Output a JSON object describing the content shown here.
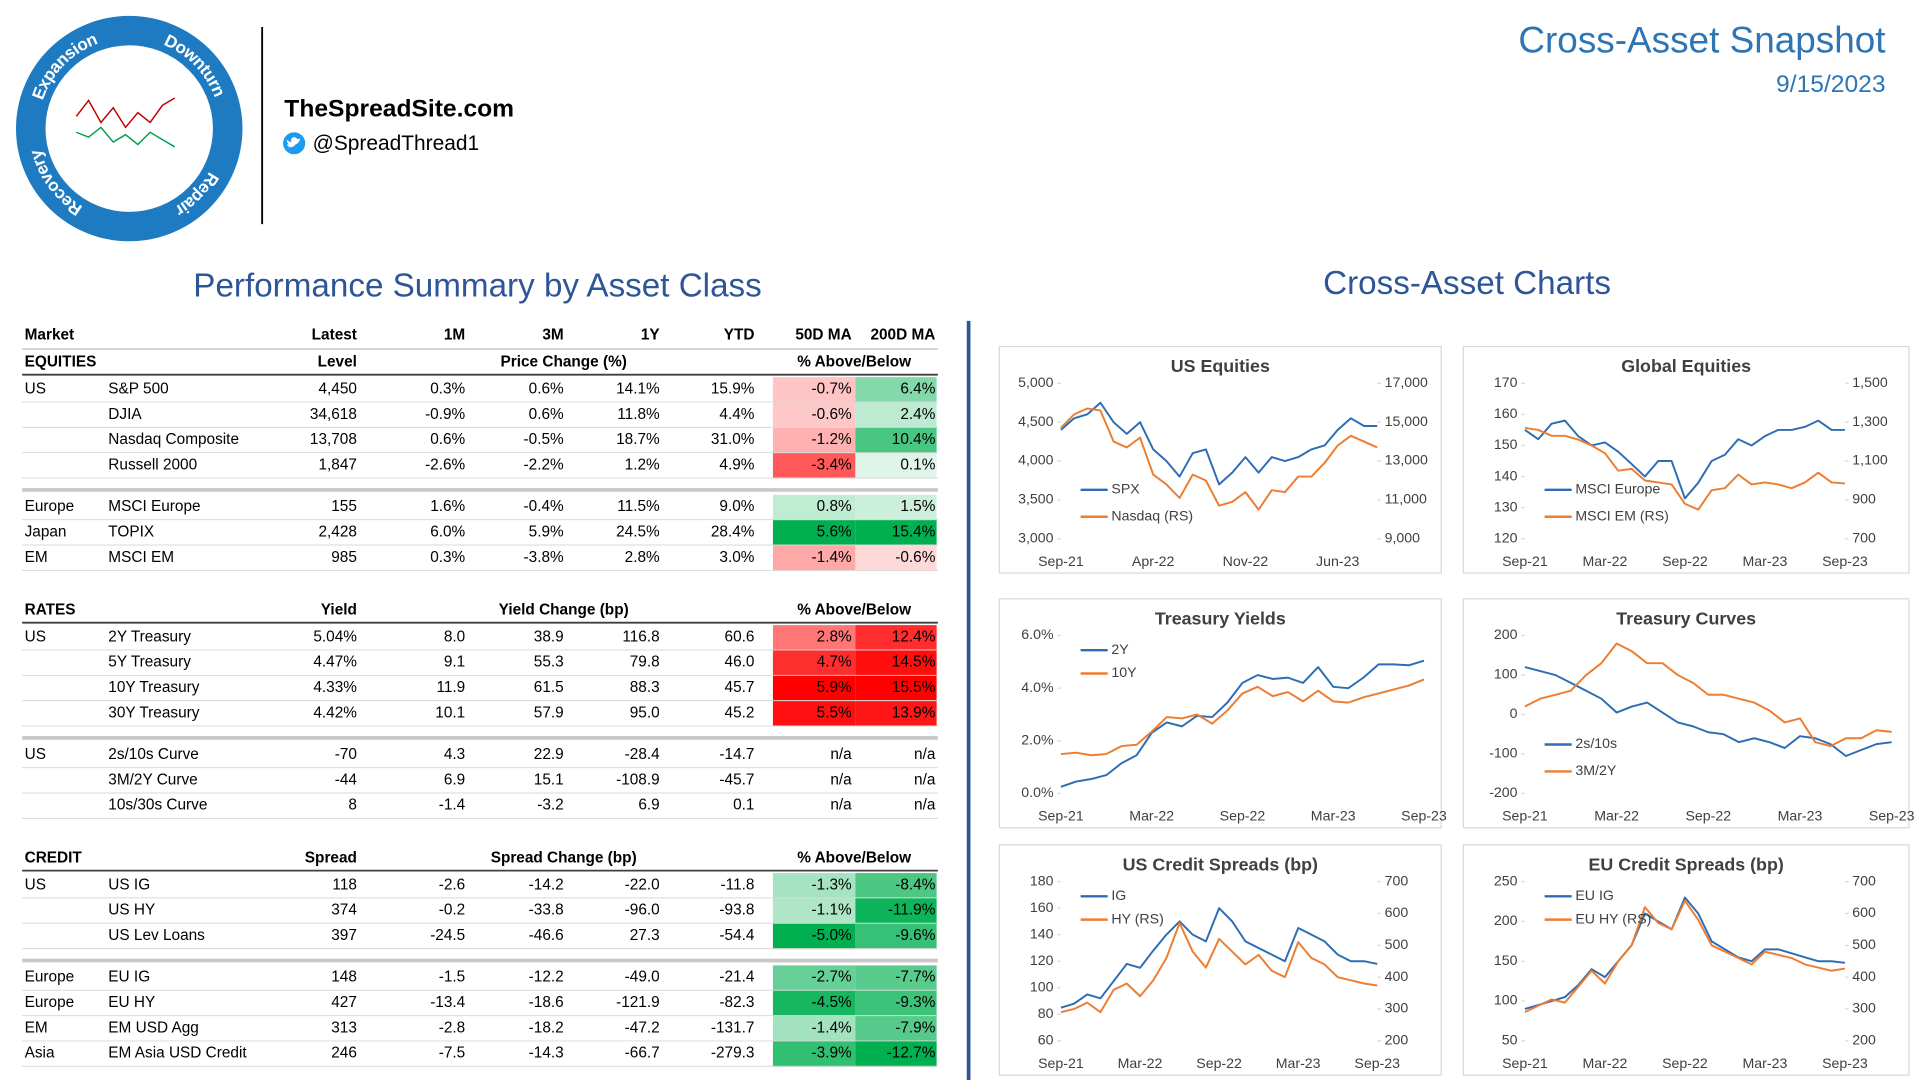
{
  "header": {
    "logo_words": [
      "Expansion",
      "Downturn",
      "Repair",
      "Recovery"
    ],
    "site": "TheSpreadSite.com",
    "handle": "@SpreadThread1",
    "title": "Cross-Asset Snapshot",
    "date": "9/15/2023"
  },
  "sections": {
    "left": "Performance Summary by Asset Class",
    "right": "Cross-Asset Charts"
  },
  "table": {
    "columns": [
      "Market",
      "Latest",
      "1M",
      "3M",
      "1Y",
      "YTD",
      "50D MA",
      "200D MA"
    ],
    "sections": [
      {
        "header": [
          "EQUITIES",
          "Level",
          "Price Change (%)",
          "% Above/Below"
        ],
        "groups": [
          [
            [
              "US",
              "S&P 500",
              "4,450",
              "0.3%",
              "0.6%",
              "14.1%",
              "15.9%",
              "-0.7%",
              "6.4%"
            ],
            [
              null,
              "DJIA",
              "34,618",
              "-0.9%",
              "0.6%",
              "11.8%",
              "4.4%",
              "-0.6%",
              "2.4%"
            ],
            [
              null,
              "Nasdaq Composite",
              "13,708",
              "0.6%",
              "-0.5%",
              "18.7%",
              "31.0%",
              "-1.2%",
              "10.4%"
            ],
            [
              null,
              "Russell 2000",
              "1,847",
              "-2.6%",
              "-2.2%",
              "1.2%",
              "4.9%",
              "-3.4%",
              "0.1%"
            ]
          ],
          [
            [
              "Europe",
              "MSCI Europe",
              "155",
              "1.6%",
              "-0.4%",
              "11.5%",
              "9.0%",
              "0.8%",
              "1.5%"
            ],
            [
              "Japan",
              "TOPIX",
              "2,428",
              "6.0%",
              "5.9%",
              "24.5%",
              "28.4%",
              "5.6%",
              "15.4%"
            ],
            [
              "EM",
              "MSCI EM",
              "985",
              "0.3%",
              "-3.8%",
              "2.8%",
              "3.0%",
              "-1.4%",
              "-0.6%"
            ]
          ]
        ]
      },
      {
        "header": [
          "RATES",
          "Yield",
          "Yield Change (bp)",
          "% Above/Below"
        ],
        "groups": [
          [
            [
              "US",
              "2Y Treasury",
              "5.04%",
              "8.0",
              "38.9",
              "116.8",
              "60.6",
              "2.8%",
              "12.4%"
            ],
            [
              null,
              "5Y Treasury",
              "4.47%",
              "9.1",
              "55.3",
              "79.8",
              "46.0",
              "4.7%",
              "14.5%"
            ],
            [
              null,
              "10Y Treasury",
              "4.33%",
              "11.9",
              "61.5",
              "88.3",
              "45.7",
              "5.9%",
              "15.5%"
            ],
            [
              null,
              "30Y Treasury",
              "4.42%",
              "10.1",
              "57.9",
              "95.0",
              "45.2",
              "5.5%",
              "13.9%"
            ]
          ],
          [
            [
              "US",
              "2s/10s Curve",
              "-70",
              "4.3",
              "22.9",
              "-28.4",
              "-14.7",
              "n/a",
              "n/a"
            ],
            [
              null,
              "3M/2Y Curve",
              "-44",
              "6.9",
              "15.1",
              "-108.9",
              "-45.7",
              "n/a",
              "n/a"
            ],
            [
              null,
              "10s/30s Curve",
              "8",
              "-1.4",
              "-3.2",
              "6.9",
              "0.1",
              "n/a",
              "n/a"
            ]
          ]
        ]
      },
      {
        "header": [
          "CREDIT",
          "Spread",
          "Spread Change (bp)",
          "% Above/Below"
        ],
        "groups": [
          [
            [
              "US",
              "US IG",
              "118",
              "-2.6",
              "-14.2",
              "-22.0",
              "-11.8",
              "-1.3%",
              "-8.4%"
            ],
            [
              null,
              "US HY",
              "374",
              "-0.2",
              "-33.8",
              "-96.0",
              "-93.8",
              "-1.1%",
              "-11.9%"
            ],
            [
              null,
              "US Lev Loans",
              "397",
              "-24.5",
              "-46.6",
              "27.3",
              "-54.4",
              "-5.0%",
              "-9.6%"
            ]
          ],
          [
            [
              "Europe",
              "EU IG",
              "148",
              "-1.5",
              "-12.2",
              "-49.0",
              "-21.4",
              "-2.7%",
              "-7.7%"
            ],
            [
              "Europe",
              "EU HY",
              "427",
              "-13.4",
              "-18.6",
              "-121.9",
              "-82.3",
              "-4.5%",
              "-9.3%"
            ],
            [
              "EM",
              "EM USD Agg",
              "313",
              "-2.8",
              "-18.2",
              "-47.2",
              "-131.7",
              "-1.4%",
              "-7.9%"
            ],
            [
              "Asia",
              "EM Asia USD Credit",
              "246",
              "-7.5",
              "-14.3",
              "-66.7",
              "-279.3",
              "-3.9%",
              "-12.7%"
            ]
          ]
        ]
      }
    ]
  },
  "chart_data": [
    {
      "type": "line",
      "title": "US Equities",
      "legend": "lower left",
      "x": [
        "Sep-21",
        "Oct-21",
        "Nov-21",
        "Dec-21",
        "Jan-22",
        "Feb-22",
        "Mar-22",
        "Apr-22",
        "May-22",
        "Jun-22",
        "Jul-22",
        "Aug-22",
        "Sep-22",
        "Oct-22",
        "Nov-22",
        "Dec-22",
        "Jan-23",
        "Feb-23",
        "Mar-23",
        "Apr-23",
        "May-23",
        "Jun-23",
        "Jul-23",
        "Aug-23",
        "Sep-23"
      ],
      "xticks": [
        "Sep-21",
        "Apr-22",
        "Nov-22",
        "Jun-23"
      ],
      "ylim": [
        3000,
        5000
      ],
      "yticks": [
        {
          "value": 3000,
          "label": "3,000"
        },
        {
          "value": 3500,
          "label": "3,500"
        },
        {
          "value": 4000,
          "label": "4,000"
        },
        {
          "value": 4500,
          "label": "4,500"
        },
        {
          "value": 5000,
          "label": "5,000"
        }
      ],
      "y2lim": [
        9000,
        17000
      ],
      "y2ticks": [
        {
          "value": 9000,
          "label": "9,000"
        },
        {
          "value": 11000,
          "label": "11,000"
        },
        {
          "value": 13000,
          "label": "13,000"
        },
        {
          "value": 15000,
          "label": "15,000"
        },
        {
          "value": 17000,
          "label": "17,000"
        }
      ],
      "series": [
        {
          "name": "SPX",
          "color": "#2e6db4",
          "values": [
            4400,
            4550,
            4600,
            4750,
            4500,
            4350,
            4500,
            4150,
            4000,
            3800,
            4100,
            4150,
            3700,
            3850,
            4050,
            3850,
            4050,
            4000,
            4050,
            4150,
            4200,
            4400,
            4550,
            4450,
            4450
          ]
        },
        {
          "name": "Nasdaq (RS)",
          "color": "#ed7d31",
          "axis": "y2",
          "values": [
            14700,
            15400,
            15700,
            15600,
            14000,
            13700,
            14200,
            12300,
            11800,
            11100,
            12300,
            12000,
            10700,
            10900,
            11400,
            10500,
            11500,
            11400,
            12200,
            12200,
            12900,
            13800,
            14300,
            14000,
            13700
          ]
        }
      ]
    },
    {
      "type": "line",
      "title": "Global Equities",
      "legend": "lower left",
      "x": [
        "Sep-21",
        "Oct-21",
        "Nov-21",
        "Dec-21",
        "Jan-22",
        "Feb-22",
        "Mar-22",
        "Apr-22",
        "May-22",
        "Jun-22",
        "Jul-22",
        "Aug-22",
        "Sep-22",
        "Oct-22",
        "Nov-22",
        "Dec-22",
        "Jan-23",
        "Feb-23",
        "Mar-23",
        "Apr-23",
        "May-23",
        "Jun-23",
        "Jul-23",
        "Aug-23",
        "Sep-23"
      ],
      "xticks": [
        "Sep-21",
        "Mar-22",
        "Sep-22",
        "Mar-23",
        "Sep-23"
      ],
      "ylim": [
        120,
        170
      ],
      "yticks": [
        120,
        130,
        140,
        150,
        160,
        170
      ],
      "y2lim": [
        700,
        1500
      ],
      "y2ticks": [
        700,
        900,
        {
          "value": 1100,
          "label": "1,100"
        },
        {
          "value": 1300,
          "label": "1,300"
        },
        {
          "value": 1500,
          "label": "1,500"
        }
      ],
      "series": [
        {
          "name": "MSCI Europe",
          "color": "#2e6db4",
          "values": [
            155,
            152,
            157,
            158,
            153,
            150,
            151,
            148,
            144,
            140,
            145,
            145,
            133,
            138,
            145,
            147,
            152,
            150,
            153,
            155,
            155,
            156,
            158,
            155,
            155
          ]
        },
        {
          "name": "MSCI EM (RS)",
          "color": "#ed7d31",
          "axis": "y2",
          "values": [
            1270,
            1260,
            1230,
            1230,
            1210,
            1180,
            1140,
            1050,
            1060,
            1000,
            990,
            980,
            880,
            850,
            950,
            960,
            1030,
            980,
            990,
            980,
            960,
            990,
            1040,
            990,
            985
          ]
        }
      ]
    },
    {
      "type": "line",
      "title": "Treasury Yields",
      "legend": "upper left",
      "x": [
        "Sep-21",
        "Oct-21",
        "Nov-21",
        "Dec-21",
        "Jan-22",
        "Feb-22",
        "Mar-22",
        "Apr-22",
        "May-22",
        "Jun-22",
        "Jul-22",
        "Aug-22",
        "Sep-22",
        "Oct-22",
        "Nov-22",
        "Dec-22",
        "Jan-23",
        "Feb-23",
        "Mar-23",
        "Apr-23",
        "May-23",
        "Jun-23",
        "Jul-23",
        "Aug-23",
        "Sep-23"
      ],
      "xticks": [
        "Sep-21",
        "Mar-22",
        "Sep-22",
        "Mar-23",
        "Sep-23"
      ],
      "ylim": [
        0,
        6
      ],
      "yticks": [
        {
          "value": 0,
          "label": "0.0%"
        },
        {
          "value": 2,
          "label": "2.0%"
        },
        {
          "value": 4,
          "label": "4.0%"
        },
        {
          "value": 6,
          "label": "6.0%"
        }
      ],
      "series": [
        {
          "name": "2Y",
          "color": "#2e6db4",
          "values": [
            0.25,
            0.45,
            0.55,
            0.7,
            1.15,
            1.45,
            2.3,
            2.7,
            2.55,
            2.95,
            2.9,
            3.45,
            4.2,
            4.5,
            4.35,
            4.4,
            4.2,
            4.8,
            4.05,
            4.0,
            4.4,
            4.9,
            4.9,
            4.87,
            5.04
          ]
        },
        {
          "name": "10Y",
          "color": "#ed7d31",
          "values": [
            1.5,
            1.55,
            1.45,
            1.5,
            1.8,
            1.85,
            2.35,
            2.9,
            2.85,
            3.0,
            2.65,
            3.15,
            3.8,
            4.05,
            3.7,
            3.85,
            3.5,
            3.9,
            3.5,
            3.45,
            3.65,
            3.8,
            3.95,
            4.1,
            4.33
          ]
        }
      ]
    },
    {
      "type": "line",
      "title": "Treasury Curves",
      "legend": "lower left",
      "x": [
        "Sep-21",
        "Oct-21",
        "Nov-21",
        "Dec-21",
        "Jan-22",
        "Feb-22",
        "Mar-22",
        "Apr-22",
        "May-22",
        "Jun-22",
        "Jul-22",
        "Aug-22",
        "Sep-22",
        "Oct-22",
        "Nov-22",
        "Dec-22",
        "Jan-23",
        "Feb-23",
        "Mar-23",
        "Apr-23",
        "May-23",
        "Jun-23",
        "Jul-23",
        "Aug-23",
        "Sep-23"
      ],
      "xticks": [
        "Sep-21",
        "Mar-22",
        "Sep-22",
        "Mar-23",
        "Sep-23"
      ],
      "ylim": [
        -200,
        200
      ],
      "yticks": [
        -200,
        -100,
        0,
        100,
        200
      ],
      "series": [
        {
          "name": "2s/10s",
          "color": "#2e6db4",
          "values": [
            120,
            110,
            100,
            80,
            60,
            40,
            5,
            20,
            30,
            5,
            -20,
            -30,
            -45,
            -50,
            -70,
            -60,
            -70,
            -85,
            -55,
            -60,
            -75,
            -105,
            -90,
            -75,
            -70
          ]
        },
        {
          "name": "3M/2Y",
          "color": "#ed7d31",
          "values": [
            20,
            40,
            50,
            60,
            100,
            130,
            180,
            160,
            130,
            130,
            100,
            80,
            50,
            50,
            40,
            30,
            10,
            -20,
            -10,
            -70,
            -80,
            -60,
            -60,
            -40,
            -44
          ]
        }
      ]
    },
    {
      "type": "line",
      "title": "US Credit Spreads (bp)",
      "legend": "upper left",
      "x": [
        "Sep-21",
        "Oct-21",
        "Nov-21",
        "Dec-21",
        "Jan-22",
        "Feb-22",
        "Mar-22",
        "Apr-22",
        "May-22",
        "Jun-22",
        "Jul-22",
        "Aug-22",
        "Sep-22",
        "Oct-22",
        "Nov-22",
        "Dec-22",
        "Jan-23",
        "Feb-23",
        "Mar-23",
        "Apr-23",
        "May-23",
        "Jun-23",
        "Jul-23",
        "Aug-23",
        "Sep-23"
      ],
      "xticks": [
        "Sep-21",
        "Mar-22",
        "Sep-22",
        "Mar-23",
        "Sep-23"
      ],
      "ylim": [
        60,
        180
      ],
      "yticks": [
        60,
        80,
        100,
        120,
        140,
        160,
        180
      ],
      "y2lim": [
        200,
        700
      ],
      "y2ticks": [
        200,
        300,
        400,
        500,
        600,
        700
      ],
      "series": [
        {
          "name": "IG",
          "color": "#2e6db4",
          "values": [
            85,
            88,
            95,
            92,
            105,
            118,
            115,
            128,
            140,
            150,
            140,
            135,
            160,
            150,
            135,
            130,
            125,
            120,
            145,
            140,
            135,
            125,
            120,
            120,
            118
          ]
        },
        {
          "name": "HY (RS)",
          "color": "#ed7d31",
          "axis": "y2",
          "values": [
            290,
            300,
            320,
            290,
            360,
            380,
            340,
            390,
            460,
            570,
            480,
            430,
            520,
            480,
            440,
            470,
            420,
            400,
            510,
            460,
            440,
            400,
            390,
            380,
            374
          ]
        }
      ]
    },
    {
      "type": "line",
      "title": "EU Credit Spreads (bp)",
      "legend": "upper left",
      "x": [
        "Sep-21",
        "Oct-21",
        "Nov-21",
        "Dec-21",
        "Jan-22",
        "Feb-22",
        "Mar-22",
        "Apr-22",
        "May-22",
        "Jun-22",
        "Jul-22",
        "Aug-22",
        "Sep-22",
        "Oct-22",
        "Nov-22",
        "Dec-22",
        "Jan-23",
        "Feb-23",
        "Mar-23",
        "Apr-23",
        "May-23",
        "Jun-23",
        "Jul-23",
        "Aug-23",
        "Sep-23"
      ],
      "xticks": [
        "Sep-21",
        "Mar-22",
        "Sep-22",
        "Mar-23",
        "Sep-23"
      ],
      "ylim": [
        50,
        250
      ],
      "yticks": [
        50,
        100,
        150,
        200,
        250
      ],
      "y2lim": [
        200,
        700
      ],
      "y2ticks": [
        200,
        300,
        400,
        500,
        600,
        700
      ],
      "series": [
        {
          "name": "EU IG",
          "color": "#2e6db4",
          "values": [
            90,
            95,
            100,
            105,
            120,
            140,
            130,
            150,
            170,
            210,
            200,
            190,
            230,
            210,
            175,
            165,
            155,
            150,
            165,
            165,
            160,
            155,
            150,
            150,
            148
          ]
        },
        {
          "name": "EU HY (RS)",
          "color": "#ed7d31",
          "axis": "y2",
          "values": [
            290,
            310,
            330,
            320,
            370,
            420,
            380,
            450,
            500,
            620,
            570,
            550,
            640,
            580,
            500,
            480,
            460,
            440,
            480,
            470,
            460,
            440,
            430,
            420,
            427
          ]
        }
      ]
    }
  ]
}
